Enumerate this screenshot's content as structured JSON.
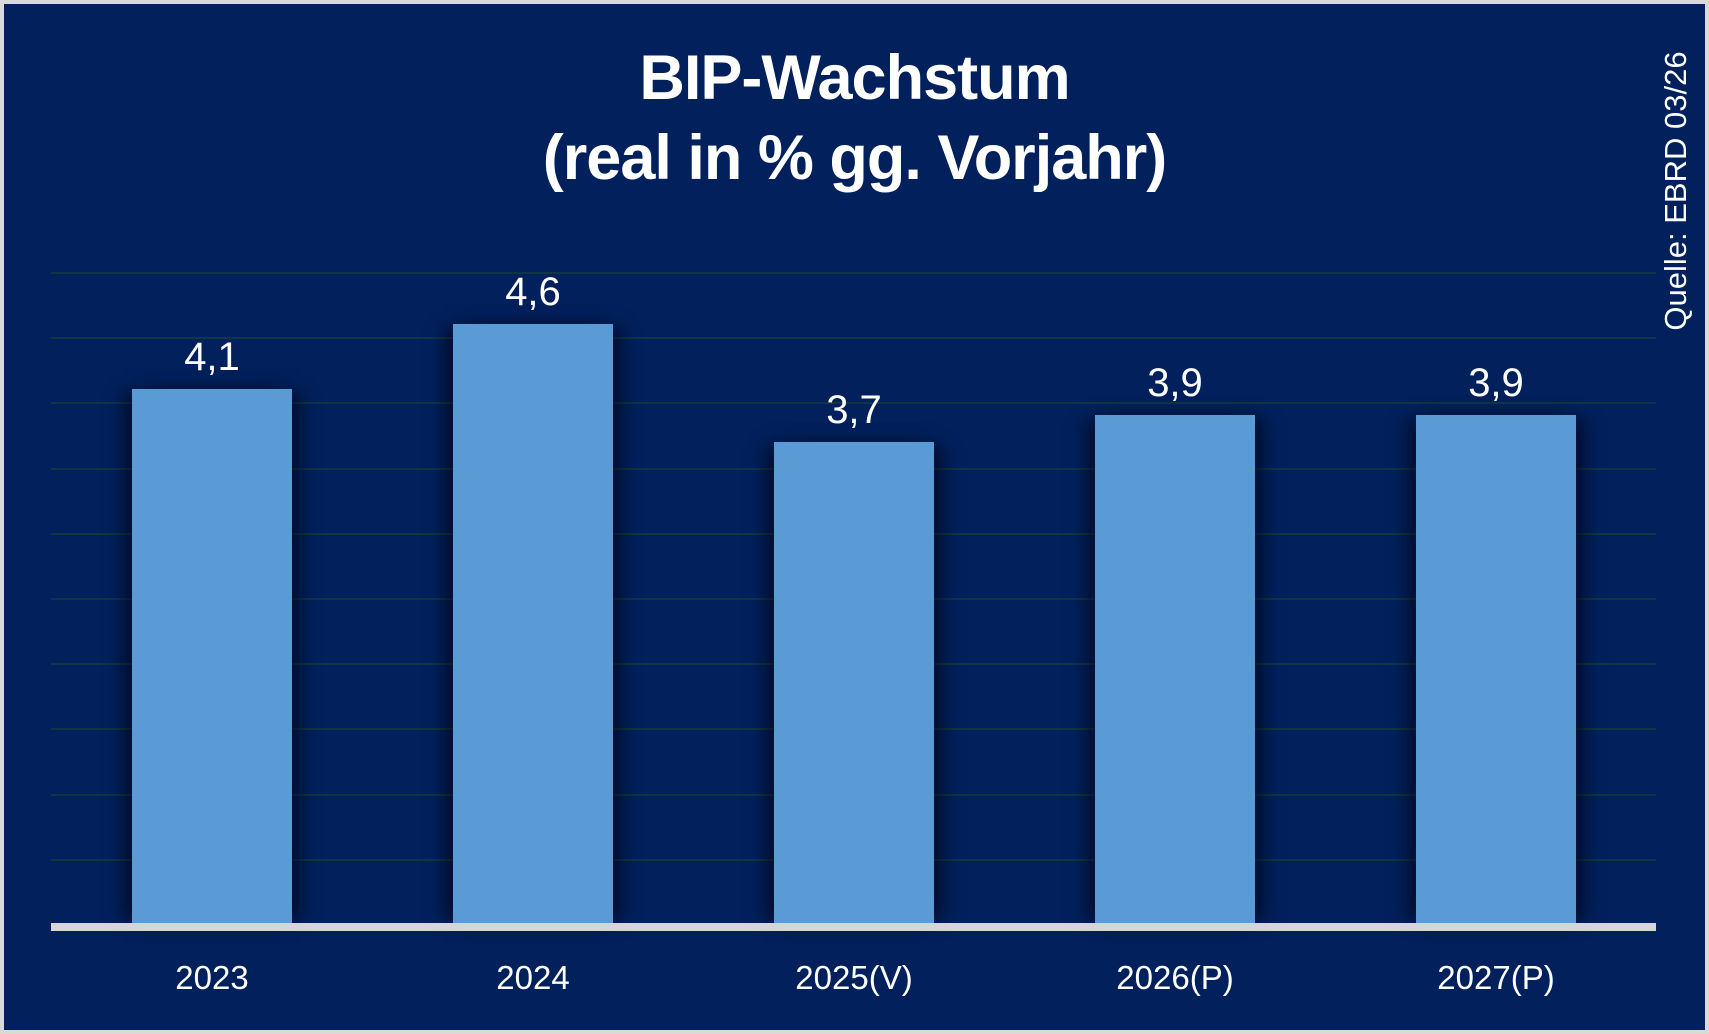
{
  "chart_data": {
    "type": "bar",
    "title_line1": "BIP-Wachstum",
    "title_line2": "(real in % gg. Vorjahr)",
    "source_note": "Quelle: EBRD 03/26",
    "categories": [
      "2023",
      "2024",
      "2025(V)",
      "2026(P)",
      "2027(P)"
    ],
    "values": [
      4.1,
      4.6,
      3.7,
      3.9,
      3.9
    ],
    "value_labels": [
      "4,1",
      "4,6",
      "3,7",
      "3,9",
      "3,9"
    ],
    "ylabel": "",
    "xlabel": "",
    "ylim": [
      0,
      5
    ],
    "gridline_step": 0.5,
    "grid": "on",
    "legend": "none",
    "colors": {
      "background": "#02205c",
      "bar": "#5b9bd5",
      "text": "#ffffff",
      "baseline": "#d6d6d6",
      "gridline": "#0d3843",
      "frame_border": "#d9d9d9"
    }
  }
}
